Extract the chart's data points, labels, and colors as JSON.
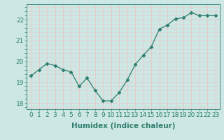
{
  "x": [
    0,
    1,
    2,
    3,
    4,
    5,
    6,
    7,
    8,
    9,
    10,
    11,
    12,
    13,
    14,
    15,
    16,
    17,
    18,
    19,
    20,
    21,
    22,
    23
  ],
  "y": [
    19.3,
    19.6,
    19.9,
    19.8,
    19.6,
    19.5,
    18.8,
    19.2,
    18.6,
    18.1,
    18.1,
    18.5,
    19.1,
    19.85,
    20.3,
    20.7,
    21.55,
    21.75,
    22.05,
    22.1,
    22.35,
    22.2,
    22.2,
    22.2
  ],
  "line_color": "#2e7d6e",
  "marker": "D",
  "marker_size": 2.5,
  "bg_color": "#cde8e4",
  "grid_color_major": "#e8c8c8",
  "grid_color_minor": "#e8c8c8",
  "axis_color": "#2e7d6e",
  "xlabel": "Humidex (Indice chaleur)",
  "ylim": [
    17.7,
    22.75
  ],
  "xlim": [
    -0.5,
    23.5
  ],
  "yticks": [
    18,
    19,
    20,
    21,
    22
  ],
  "xticks": [
    0,
    1,
    2,
    3,
    4,
    5,
    6,
    7,
    8,
    9,
    10,
    11,
    12,
    13,
    14,
    15,
    16,
    17,
    18,
    19,
    20,
    21,
    22,
    23
  ],
  "font_color": "#2e7d6e",
  "font_size": 6.5,
  "xlabel_fontsize": 7.5
}
